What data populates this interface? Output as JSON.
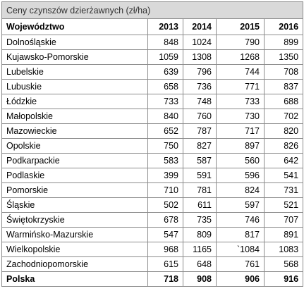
{
  "table": {
    "title": "Ceny czynszów dzierżawnych (zł/ha)",
    "headers": [
      "Województwo",
      "2013",
      "2014",
      "2015",
      "2016"
    ],
    "rows": [
      [
        "Dolnośląskie",
        "848",
        "1024",
        "790",
        "899"
      ],
      [
        "Kujawsko-Pomorskie",
        "1059",
        "1308",
        "1268",
        "1350"
      ],
      [
        "Lubelskie",
        "639",
        "796",
        "744",
        "708"
      ],
      [
        "Lubuskie",
        "658",
        "736",
        "771",
        "837"
      ],
      [
        "Łódzkie",
        "733",
        "748",
        "733",
        "688"
      ],
      [
        "Małopolskie",
        "840",
        "760",
        "730",
        "702"
      ],
      [
        "Mazowieckie",
        "652",
        "787",
        "717",
        "820"
      ],
      [
        "Opolskie",
        "750",
        "827",
        "897",
        "826"
      ],
      [
        "Podkarpackie",
        "583",
        "587",
        "560",
        "642"
      ],
      [
        "Podlaskie",
        "399",
        "591",
        "596",
        "541"
      ],
      [
        "Pomorskie",
        "710",
        "781",
        "824",
        "731"
      ],
      [
        "Śląskie",
        "502",
        "611",
        "597",
        "521"
      ],
      [
        "Świętokrzyskie",
        "678",
        "735",
        "746",
        "707"
      ],
      [
        "Warmińsko-Mazurskie",
        "547",
        "809",
        "817",
        "891"
      ],
      [
        "Wielkopolskie",
        "968",
        "1165",
        "`1084",
        "1083"
      ],
      [
        "Zachodniopomorskie",
        "615",
        "648",
        "761",
        "568"
      ]
    ],
    "total": [
      "Polska",
      "718",
      "908",
      "906",
      "916"
    ]
  }
}
